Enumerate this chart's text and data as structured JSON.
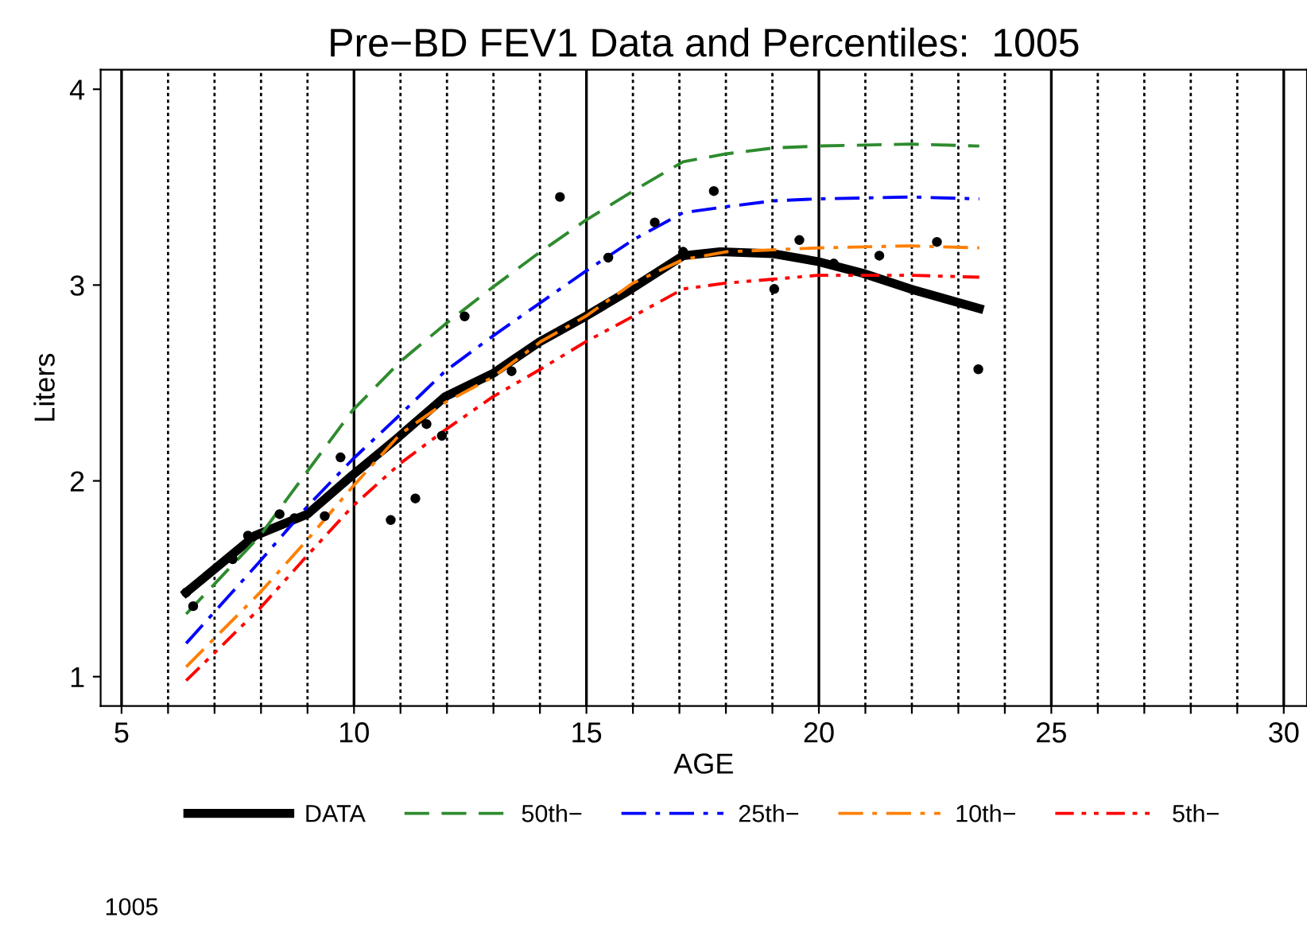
{
  "chart_data": {
    "type": "line",
    "title": "Pre−BD FEV1 Data and Percentiles:  1005",
    "xlabel": "AGE",
    "ylabel": "Liters",
    "xlim": [
      4.55,
      30.5
    ],
    "ylim": [
      0.85,
      4.1
    ],
    "xticks": [
      5,
      {
        "value": 6,
        "label": null
      },
      {
        "value": 7,
        "label": null
      },
      {
        "value": 8,
        "label": null
      },
      {
        "value": 9,
        "label": null
      },
      10,
      {
        "value": 11,
        "label": null
      },
      {
        "value": 12,
        "label": null
      },
      {
        "value": 13,
        "label": null
      },
      {
        "value": 14,
        "label": null
      },
      15,
      {
        "value": 16,
        "label": null
      },
      {
        "value": 17,
        "label": null
      },
      {
        "value": 18,
        "label": null
      },
      {
        "value": 19,
        "label": null
      },
      20,
      {
        "value": 21,
        "label": null
      },
      {
        "value": 22,
        "label": null
      },
      {
        "value": 23,
        "label": null
      },
      {
        "value": 24,
        "label": null
      },
      25,
      {
        "value": 26,
        "label": null
      },
      {
        "value": 27,
        "label": null
      },
      {
        "value": 28,
        "label": null
      },
      {
        "value": 29,
        "label": null
      },
      30
    ],
    "yticks": [
      1,
      2,
      3,
      4
    ],
    "grid": "x",
    "legend": "bottom",
    "annotations": [
      "1005"
    ],
    "series": [
      {
        "type": "scatter",
        "color": "#000000",
        "marker": "circle",
        "x": [
          6.39,
          6.54,
          7.39,
          7.72,
          8.4,
          8.72,
          9.37,
          9.71,
          10.79,
          11.32,
          11.56,
          11.89,
          12.38,
          13.39,
          14.43,
          15.47,
          16.47,
          17.08,
          17.74,
          19.04,
          19.58,
          20.32,
          21.3,
          22.54,
          23.43
        ],
        "values": [
          1.43,
          1.36,
          1.6,
          1.72,
          1.83,
          1.81,
          1.82,
          2.12,
          1.8,
          1.91,
          2.29,
          2.23,
          2.84,
          2.56,
          3.45,
          3.14,
          3.32,
          3.17,
          3.48,
          2.98,
          3.23,
          3.11,
          3.15,
          3.22,
          2.57
        ]
      },
      {
        "name": "DATA",
        "color": "#000000",
        "line_style": "solid",
        "x": [
          6.39,
          7.87,
          9.0,
          9.97,
          10.94,
          11.96,
          13.0,
          13.99,
          14.98,
          15.83,
          17.08,
          17.88,
          19.02,
          19.98,
          20.95,
          21.97,
          23.45
        ],
        "values": [
          1.43,
          1.72,
          1.83,
          2.03,
          2.22,
          2.43,
          2.55,
          2.71,
          2.84,
          2.96,
          3.15,
          3.17,
          3.16,
          3.12,
          3.06,
          2.98,
          2.88
        ]
      },
      {
        "name": "50th−",
        "color": "#2e8b2e",
        "line_style": "dashed",
        "x": [
          6.39,
          7.98,
          9.0,
          9.97,
          11.0,
          11.96,
          12.99,
          14.01,
          14.98,
          16.0,
          17.08,
          18.0,
          19.02,
          19.98,
          21.97,
          23.45
        ],
        "values": [
          1.32,
          1.72,
          2.05,
          2.36,
          2.61,
          2.8,
          2.99,
          3.17,
          3.33,
          3.48,
          3.63,
          3.67,
          3.7,
          3.71,
          3.72,
          3.71
        ]
      },
      {
        "name": "25th−",
        "color": "#0000ff",
        "line_style": "dashdot",
        "x": [
          6.39,
          7.98,
          9.0,
          9.97,
          11.0,
          11.96,
          12.99,
          14.01,
          14.98,
          16.0,
          17.08,
          18.0,
          19.02,
          19.98,
          21.97,
          23.45
        ],
        "values": [
          1.17,
          1.59,
          1.87,
          2.11,
          2.34,
          2.56,
          2.74,
          2.91,
          3.07,
          3.23,
          3.37,
          3.4,
          3.43,
          3.44,
          3.45,
          3.44
        ]
      },
      {
        "name": "10th−",
        "color": "#ff7f00",
        "line_style": "dashdot",
        "x": [
          6.39,
          7.98,
          9.0,
          9.97,
          11.0,
          11.96,
          12.99,
          14.01,
          14.98,
          16.0,
          17.08,
          18.0,
          19.02,
          19.98,
          21.97,
          23.45
        ],
        "values": [
          1.05,
          1.43,
          1.7,
          1.97,
          2.24,
          2.4,
          2.53,
          2.71,
          2.84,
          3.01,
          3.13,
          3.17,
          3.18,
          3.19,
          3.2,
          3.19
        ]
      },
      {
        "name": "5th−",
        "color": "#ff0000",
        "line_style": "dashdotdot",
        "x": [
          6.39,
          7.98,
          9.0,
          9.97,
          11.0,
          11.96,
          12.99,
          14.01,
          14.98,
          16.0,
          17.08,
          18.0,
          19.02,
          19.98,
          21.97,
          23.45
        ],
        "values": [
          0.98,
          1.35,
          1.62,
          1.87,
          2.09,
          2.26,
          2.43,
          2.57,
          2.71,
          2.84,
          2.98,
          3.01,
          3.03,
          3.05,
          3.05,
          3.04
        ]
      }
    ]
  }
}
